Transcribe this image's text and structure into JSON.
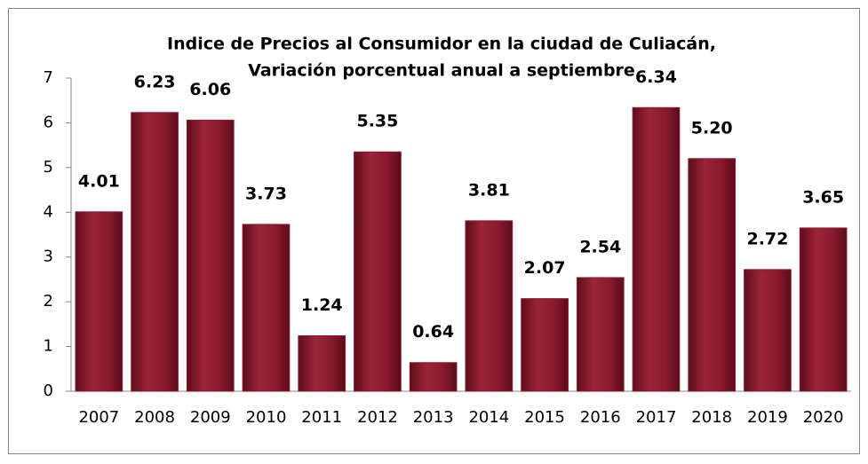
{
  "chart_data": {
    "type": "bar",
    "title": "Indice de Precios al Consumidor en la ciudad de Culiacán,",
    "subtitle": "Variación porcentual anual a septiembre",
    "categories": [
      "2007",
      "2008",
      "2009",
      "2010",
      "2011",
      "2012",
      "2013",
      "2014",
      "2015",
      "2016",
      "2017",
      "2018",
      "2019",
      "2020"
    ],
    "values": [
      4.01,
      6.23,
      6.06,
      3.73,
      1.24,
      5.35,
      0.64,
      3.81,
      2.07,
      2.54,
      6.34,
      5.2,
      2.72,
      3.65
    ],
    "value_labels": [
      "4.01",
      "6.23",
      "6.06",
      "3.73",
      "1.24",
      "5.35",
      "0.64",
      "3.81",
      "2.07",
      "2.54",
      "6.34",
      "5.20",
      "2.72",
      "3.65"
    ],
    "color": "#8b1a2e",
    "ylim": [
      0,
      7
    ],
    "yticks": [
      0,
      1,
      2,
      3,
      4,
      5,
      6,
      7
    ],
    "grid": false
  }
}
